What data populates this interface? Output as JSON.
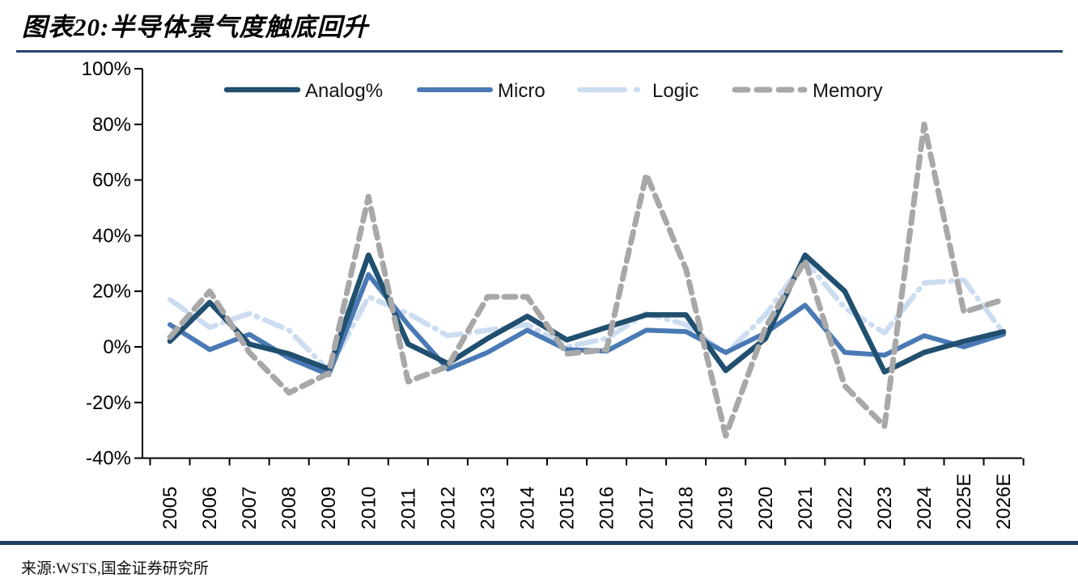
{
  "header": {
    "title": "图表20:半导体景气度触底回升"
  },
  "footer": {
    "source_label": "来源:WSTS,国金证券研究所"
  },
  "colors": {
    "accent_rule": "#24466e",
    "bottom_bar": "#1f3c64",
    "axis": "#000000"
  },
  "chart_data": {
    "type": "line",
    "title": "半导体景气度触底回升 (YoY %)",
    "categories": [
      "2005",
      "2006",
      "2007",
      "2008",
      "2009",
      "2010",
      "2011",
      "2012",
      "2013",
      "2014",
      "2015",
      "2016",
      "2017",
      "2018",
      "2019",
      "2020",
      "2021",
      "2022",
      "2023",
      "2024",
      "2025E",
      "2026E"
    ],
    "series": [
      {
        "name": "Analog%",
        "color": "#204f6f",
        "style": "solid",
        "values": [
          2,
          16,
          1,
          -2.5,
          -8,
          33,
          1,
          -6,
          3,
          11,
          2.5,
          7,
          11.5,
          11.5,
          -8.5,
          3,
          33,
          20,
          -9,
          -2,
          2,
          5.5
        ]
      },
      {
        "name": "Micro",
        "color": "#4a7ab5",
        "style": "solid",
        "values": [
          8,
          -1,
          4.5,
          -4,
          -10,
          26,
          8,
          -8,
          -2,
          6,
          -1,
          -1.5,
          6,
          5.5,
          -2,
          5,
          15,
          -2,
          -3,
          4,
          0,
          4.5
        ]
      },
      {
        "name": "Logic",
        "color": "#ccddf1",
        "style": "long-dash-dot",
        "values": [
          17,
          7,
          12,
          6,
          -8.5,
          18,
          12,
          4,
          6,
          8,
          0,
          3,
          12,
          8,
          -2.5,
          11.5,
          31,
          14,
          5,
          23,
          24,
          5
        ]
      },
      {
        "name": "Memory",
        "color": "#a8a8a8",
        "style": "dash",
        "values": [
          3.5,
          20,
          -2,
          -16.5,
          -9.5,
          54,
          -12.5,
          -7,
          18,
          18,
          -2.5,
          -1,
          62,
          28,
          -32,
          7,
          31,
          -14,
          -28.5,
          80,
          12.5,
          17
        ]
      }
    ],
    "ylim": [
      -40,
      100
    ],
    "yticks": [
      100,
      80,
      60,
      40,
      20,
      0,
      -20,
      -40
    ],
    "ytick_labels": [
      "100%",
      "80%",
      "60%",
      "40%",
      "20%",
      "0%",
      "-20%",
      "-40%"
    ],
    "xlabel": "",
    "ylabel": "",
    "grid": false,
    "legend_position": "top"
  }
}
